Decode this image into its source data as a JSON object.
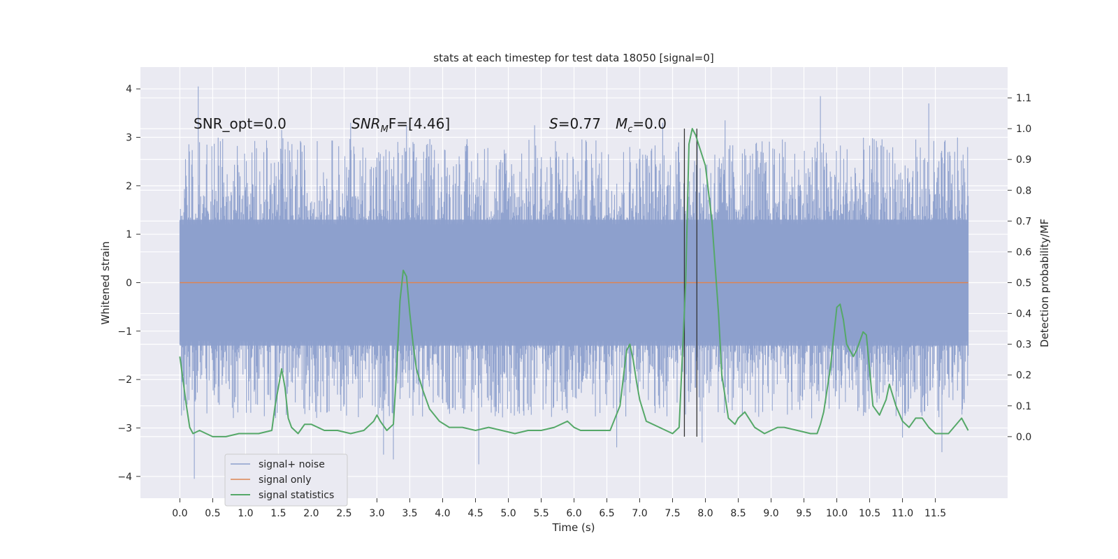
{
  "chart_data": {
    "type": "line",
    "title": "stats at each timestep for test data 18050 [signal=0]",
    "xlabel": "Time (s)",
    "ylabel": "Whitened strain",
    "ylabel_right": "Detection probability/MF",
    "xlim": [
      -0.6,
      12.6
    ],
    "ylim": [
      -4.45,
      4.45
    ],
    "ylim_right": [
      -0.2,
      1.2
    ],
    "x_ticks": [
      0.0,
      0.5,
      1.0,
      1.5,
      2.0,
      2.5,
      3.0,
      3.5,
      4.0,
      4.5,
      5.0,
      5.5,
      6.0,
      6.5,
      7.0,
      7.5,
      8.0,
      8.5,
      9.0,
      9.5,
      10.0,
      10.5,
      11.0,
      11.5
    ],
    "x_tick_labels": [
      "0.0",
      "0.5",
      "1.0",
      "1.5",
      "2.0",
      "2.5",
      "3.0",
      "3.5",
      "4.0",
      "4.5",
      "5.0",
      "5.5",
      "6.0",
      "6.5",
      "7.0",
      "7.5",
      "8.0",
      "8.5",
      "9.0",
      "9.5",
      "10.0",
      "10.5",
      "11.0",
      "11.5"
    ],
    "y_ticks": [
      -4,
      -3,
      -2,
      -1,
      0,
      1,
      2,
      3,
      4
    ],
    "y_tick_labels": [
      "−4",
      "−3",
      "−2",
      "−1",
      "0",
      "1",
      "2",
      "3",
      "4"
    ],
    "y_ticks_right": [
      0.0,
      0.1,
      0.2,
      0.3,
      0.4,
      0.5,
      0.6,
      0.7,
      0.8,
      0.9,
      1.0,
      1.1
    ],
    "y_tick_labels_right": [
      "0.0",
      "0.1",
      "0.2",
      "0.3",
      "0.4",
      "0.5",
      "0.6",
      "0.7",
      "0.8",
      "0.9",
      "1.0",
      "1.1"
    ],
    "grid": true,
    "legend_position": "lower-left",
    "annotations": {
      "snr_opt": "SNR_opt=0.0",
      "snr_mf_main": "SNR",
      "snr_mf_sub": "M",
      "snr_mf_rest": "F=[4.46]",
      "s_symbol": "S",
      "s_value": "=0.77",
      "mc_symbol": "M",
      "mc_sub": "c",
      "mc_value": "=0.0"
    },
    "vertical_lines": [
      7.68,
      7.87
    ],
    "noise": {
      "name": "signal+ noise",
      "color": "#8c9fcc",
      "x_range": [
        0.0,
        12.0
      ],
      "core_band": [
        -1.3,
        1.3
      ],
      "peaks_positive": [
        {
          "x": 0.28,
          "y": 4.05
        },
        {
          "x": 0.3,
          "y": 2.9
        },
        {
          "x": 1.55,
          "y": 3.15
        },
        {
          "x": 2.6,
          "y": 3.3
        },
        {
          "x": 3.45,
          "y": 3.25
        },
        {
          "x": 5.4,
          "y": 3.25
        },
        {
          "x": 7.35,
          "y": 3.3
        },
        {
          "x": 8.3,
          "y": 3.35
        },
        {
          "x": 9.75,
          "y": 3.85
        },
        {
          "x": 11.4,
          "y": 3.7
        }
      ],
      "peaks_negative": [
        {
          "x": 0.22,
          "y": -4.05
        },
        {
          "x": 3.1,
          "y": -3.55
        },
        {
          "x": 3.25,
          "y": -3.65
        },
        {
          "x": 4.55,
          "y": -3.75
        },
        {
          "x": 6.65,
          "y": -3.4
        },
        {
          "x": 7.95,
          "y": -3.3
        },
        {
          "x": 11.0,
          "y": -3.2
        },
        {
          "x": 11.6,
          "y": -3.5
        }
      ]
    },
    "series": [
      {
        "name": "signal only",
        "color": "#dd8452",
        "axis": "left",
        "x": [
          0.0,
          12.0
        ],
        "y": [
          0.0,
          0.0
        ]
      },
      {
        "name": "signal statistics",
        "color": "#55a868",
        "axis": "right",
        "x": [
          0.0,
          0.05,
          0.1,
          0.15,
          0.2,
          0.3,
          0.4,
          0.5,
          0.7,
          0.9,
          1.0,
          1.2,
          1.4,
          1.45,
          1.5,
          1.55,
          1.6,
          1.65,
          1.7,
          1.8,
          1.9,
          2.0,
          2.2,
          2.4,
          2.6,
          2.8,
          2.95,
          3.0,
          3.05,
          3.15,
          3.25,
          3.3,
          3.35,
          3.4,
          3.45,
          3.5,
          3.55,
          3.6,
          3.7,
          3.8,
          3.95,
          4.1,
          4.3,
          4.5,
          4.7,
          4.9,
          5.1,
          5.3,
          5.5,
          5.7,
          5.9,
          6.0,
          6.1,
          6.2,
          6.4,
          6.55,
          6.7,
          6.8,
          6.85,
          6.9,
          6.95,
          7.0,
          7.1,
          7.3,
          7.5,
          7.6,
          7.7,
          7.75,
          7.8,
          7.85,
          8.0,
          8.1,
          8.2,
          8.25,
          8.35,
          8.45,
          8.5,
          8.6,
          8.75,
          8.9,
          9.0,
          9.1,
          9.2,
          9.4,
          9.6,
          9.7,
          9.75,
          9.8,
          9.9,
          10.0,
          10.05,
          10.1,
          10.15,
          10.25,
          10.3,
          10.4,
          10.45,
          10.55,
          10.65,
          10.75,
          10.8,
          10.9,
          11.0,
          11.1,
          11.2,
          11.3,
          11.4,
          11.5,
          11.6,
          11.7,
          11.9,
          12.0
        ],
        "y": [
          0.26,
          0.18,
          0.1,
          0.03,
          0.01,
          0.02,
          0.01,
          0.0,
          0.0,
          0.01,
          0.01,
          0.01,
          0.02,
          0.1,
          0.16,
          0.22,
          0.16,
          0.06,
          0.03,
          0.01,
          0.04,
          0.04,
          0.02,
          0.02,
          0.01,
          0.02,
          0.05,
          0.07,
          0.05,
          0.02,
          0.04,
          0.22,
          0.44,
          0.54,
          0.52,
          0.4,
          0.3,
          0.22,
          0.15,
          0.09,
          0.05,
          0.03,
          0.03,
          0.02,
          0.03,
          0.02,
          0.01,
          0.02,
          0.02,
          0.03,
          0.05,
          0.03,
          0.02,
          0.02,
          0.02,
          0.02,
          0.1,
          0.28,
          0.3,
          0.25,
          0.18,
          0.12,
          0.05,
          0.03,
          0.01,
          0.03,
          0.5,
          0.95,
          1.0,
          0.98,
          0.88,
          0.7,
          0.4,
          0.2,
          0.06,
          0.04,
          0.06,
          0.08,
          0.03,
          0.01,
          0.02,
          0.03,
          0.03,
          0.02,
          0.01,
          0.01,
          0.04,
          0.08,
          0.22,
          0.42,
          0.43,
          0.38,
          0.3,
          0.26,
          0.28,
          0.34,
          0.33,
          0.1,
          0.07,
          0.12,
          0.17,
          0.1,
          0.05,
          0.03,
          0.06,
          0.06,
          0.03,
          0.01,
          0.01,
          0.01,
          0.06,
          0.02
        ]
      }
    ]
  }
}
